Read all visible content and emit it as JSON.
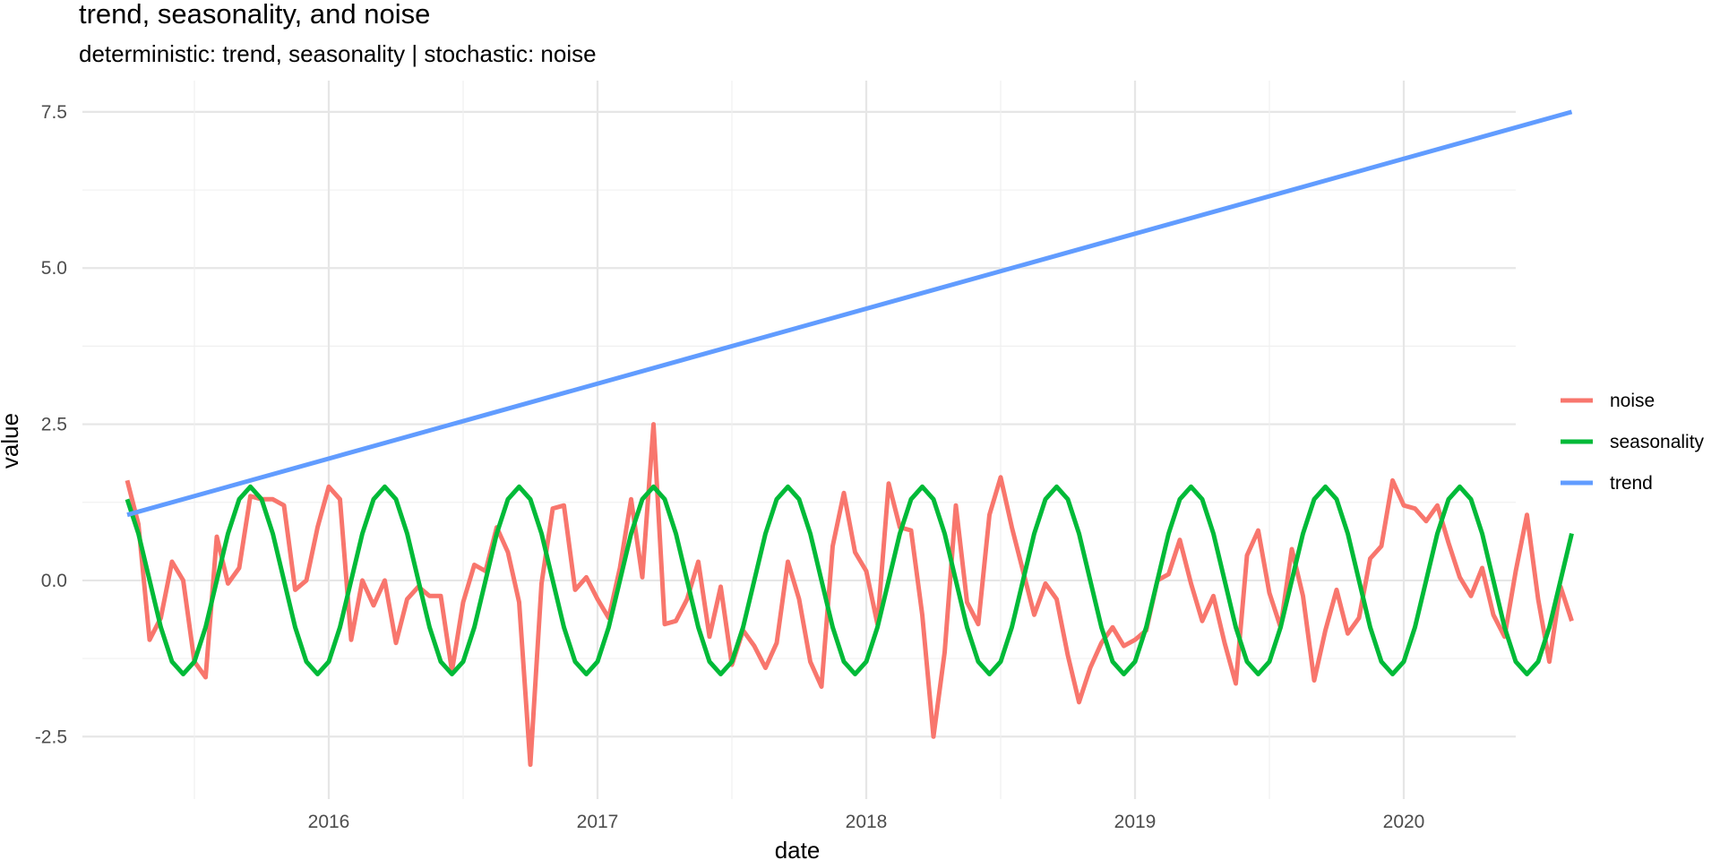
{
  "chart_data": {
    "type": "line",
    "title": "trend, seasonality, and noise",
    "subtitle": "deterministic: trend, seasonality | stochastic: noise",
    "xlabel": "date",
    "ylabel": "value",
    "x_start": "2015-04",
    "x_ticks": [
      "2016",
      "2017",
      "2018",
      "2019",
      "2020"
    ],
    "y_ticks": [
      "-2.5",
      "0.0",
      "2.5",
      "5.0",
      "7.5"
    ],
    "xlim": [
      "2015-02",
      "2020-06"
    ],
    "ylim": [
      -3.5,
      8.0
    ],
    "grid": true,
    "legend_position": "right",
    "series": [
      {
        "name": "noise",
        "color": "#F8766D",
        "values": [
          1.6,
          0.9,
          -0.95,
          -0.6,
          0.3,
          0.0,
          -1.3,
          -1.55,
          0.7,
          -0.05,
          0.2,
          1.35,
          1.3,
          1.3,
          1.2,
          -0.15,
          0.0,
          0.85,
          1.5,
          1.3,
          -0.95,
          0.0,
          -0.4,
          0.0,
          -1.0,
          -0.3,
          -0.1,
          -0.25,
          -0.25,
          -1.45,
          -0.35,
          0.25,
          0.15,
          0.85,
          0.45,
          -0.35,
          -2.95,
          -0.05,
          1.15,
          1.2,
          -0.15,
          0.05,
          -0.3,
          -0.6,
          0.2,
          1.3,
          0.05,
          2.5,
          -0.7,
          -0.65,
          -0.3,
          0.3,
          -0.9,
          -0.1,
          -1.35,
          -0.8,
          -1.05,
          -1.4,
          -1.0,
          0.3,
          -0.3,
          -1.3,
          -1.7,
          0.55,
          1.4,
          0.45,
          0.15,
          -0.7,
          1.55,
          0.85,
          0.8,
          -0.55,
          -2.5,
          -1.15,
          1.2,
          -0.35,
          -0.7,
          1.05,
          1.65,
          0.85,
          0.15,
          -0.55,
          -0.05,
          -0.3,
          -1.2,
          -1.95,
          -1.4,
          -1.0,
          -0.75,
          -1.05,
          -0.95,
          -0.8,
          0.0,
          0.1,
          0.65,
          -0.05,
          -0.65,
          -0.25,
          -1.0,
          -1.65,
          0.4,
          0.8,
          -0.2,
          -0.75,
          0.5,
          -0.25,
          -1.6,
          -0.8,
          -0.15,
          -0.85,
          -0.6,
          0.35,
          0.55,
          1.6,
          1.2,
          1.15,
          0.95,
          1.2,
          0.6,
          0.05,
          -0.25,
          0.2,
          -0.55,
          -0.9,
          0.15,
          1.05,
          -0.3,
          -1.3,
          -0.1,
          -0.65
        ]
      },
      {
        "name": "seasonality",
        "color": "#00BA38",
        "values": [
          1.3,
          0.75,
          0.0,
          -0.75,
          -1.3,
          -1.5,
          -1.3,
          -0.75,
          0.0,
          0.75,
          1.3,
          1.5,
          1.3,
          0.75,
          0.0,
          -0.75,
          -1.3,
          -1.5,
          -1.3,
          -0.75,
          0.0,
          0.75,
          1.3,
          1.5,
          1.3,
          0.75,
          0.0,
          -0.75,
          -1.3,
          -1.5,
          -1.3,
          -0.75,
          0.0,
          0.75,
          1.3,
          1.5,
          1.3,
          0.75,
          0.0,
          -0.75,
          -1.3,
          -1.5,
          -1.3,
          -0.75,
          0.0,
          0.75,
          1.3,
          1.5,
          1.3,
          0.75,
          0.0,
          -0.75,
          -1.3,
          -1.5,
          -1.3,
          -0.75,
          0.0,
          0.75,
          1.3,
          1.5,
          1.3,
          0.75,
          0.0,
          -0.75,
          -1.3,
          -1.5,
          -1.3,
          -0.75,
          0.0,
          0.75,
          1.3,
          1.5,
          1.3,
          0.75,
          0.0,
          -0.75,
          -1.3,
          -1.5,
          -1.3,
          -0.75,
          0.0,
          0.75,
          1.3,
          1.5,
          1.3,
          0.75,
          0.0,
          -0.75,
          -1.3,
          -1.5,
          -1.3,
          -0.75,
          0.0,
          0.75,
          1.3,
          1.5,
          1.3,
          0.75,
          0.0,
          -0.75,
          -1.3,
          -1.5,
          -1.3,
          -0.75,
          0.0,
          0.75,
          1.3,
          1.5,
          1.3,
          0.75,
          0.0,
          -0.75,
          -1.3,
          -1.5,
          -1.3,
          -0.75,
          0.0,
          0.75,
          1.3,
          1.5,
          1.3,
          0.75,
          0.0,
          -0.75,
          -1.3,
          -1.5,
          -1.3,
          -0.75,
          0.0,
          0.75
        ]
      },
      {
        "name": "trend",
        "color": "#619CFF",
        "start": 1.05,
        "end": 7.5
      }
    ]
  }
}
